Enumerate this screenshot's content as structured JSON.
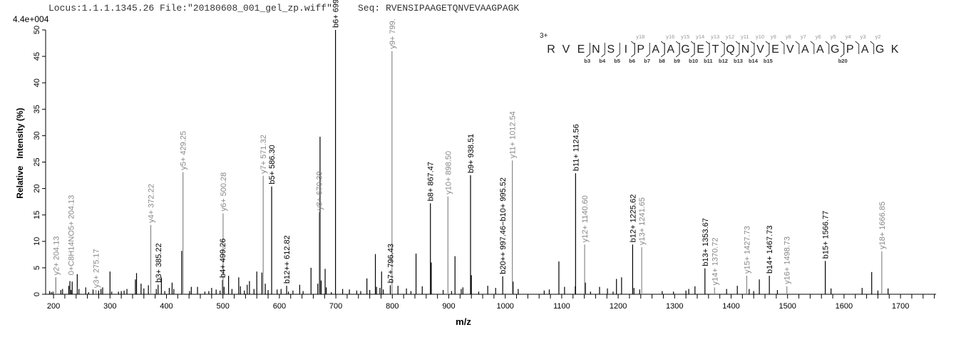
{
  "header": {
    "locus": "Locus:1.1.1.1345.26 File:\"20180608_001_gel_zp.wiff\"",
    "seq": "Seq: RVENSIPAAGETQNVEVAAGPAGK",
    "scale": "4.4e+004"
  },
  "ladder": {
    "charge": "3+",
    "sequence": [
      "R",
      "V",
      "E",
      "N",
      "S",
      "I",
      "P",
      "A",
      "A",
      "G",
      "E",
      "T",
      "Q",
      "N",
      "V",
      "E",
      "V",
      "A",
      "A",
      "G",
      "P",
      "A",
      "G",
      "K"
    ],
    "y_ions": [
      {
        "after": 6,
        "label": "y18"
      },
      {
        "after": 8,
        "label": "y16"
      },
      {
        "after": 9,
        "label": "y15"
      },
      {
        "after": 10,
        "label": "y14"
      },
      {
        "after": 11,
        "label": "y13"
      },
      {
        "after": 12,
        "label": "y12"
      },
      {
        "after": 13,
        "label": "y11"
      },
      {
        "after": 14,
        "label": "y10"
      },
      {
        "after": 15,
        "label": "y9"
      },
      {
        "after": 16,
        "label": "y8"
      },
      {
        "after": 17,
        "label": "y7"
      },
      {
        "after": 18,
        "label": "y6"
      },
      {
        "after": 19,
        "label": "y5"
      },
      {
        "after": 20,
        "label": "y4"
      },
      {
        "after": 21,
        "label": "y3"
      },
      {
        "after": 22,
        "label": "y2"
      }
    ],
    "b_ions": [
      {
        "after": 3,
        "label": "b3"
      },
      {
        "after": 4,
        "label": "b4"
      },
      {
        "after": 5,
        "label": "b5"
      },
      {
        "after": 6,
        "label": "b6"
      },
      {
        "after": 7,
        "label": "b7"
      },
      {
        "after": 8,
        "label": "b8"
      },
      {
        "after": 9,
        "label": "b9"
      },
      {
        "after": 10,
        "label": "b10"
      },
      {
        "after": 11,
        "label": "b11"
      },
      {
        "after": 12,
        "label": "b12"
      },
      {
        "after": 13,
        "label": "b13"
      },
      {
        "after": 14,
        "label": "b14"
      },
      {
        "after": 15,
        "label": "b15"
      },
      {
        "after": 20,
        "label": "b20"
      }
    ]
  },
  "colors": {
    "b_ion": "#000000",
    "y_ion": "#888888",
    "unlabeled": "#000000"
  },
  "chart_data": {
    "type": "bar",
    "xlabel": "m/z",
    "ylabel": "Relative   Intensity (%)",
    "xlim": [
      186,
      1763
    ],
    "ylim": [
      0,
      50
    ],
    "xticks": [
      200,
      300,
      400,
      500,
      600,
      700,
      800,
      900,
      1000,
      1100,
      1200,
      1300,
      1400,
      1500,
      1600,
      1700
    ],
    "yticks": [
      0,
      5,
      10,
      15,
      20,
      25,
      30,
      35,
      40,
      45,
      50
    ],
    "grid": false,
    "labeled_peaks": [
      {
        "mz": 204.13,
        "intensity": 3.2,
        "label": "y2+ 204.13",
        "type": "y"
      },
      {
        "mz": 204.13,
        "intensity": 3.2,
        "label": "0+C8H14NO5+ 204.13",
        "type": "y",
        "label_offset": true
      },
      {
        "mz": 275.17,
        "intensity": 0.8,
        "label": "y3+ 275.17",
        "type": "y"
      },
      {
        "mz": 372.22,
        "intensity": 13.1,
        "label": "y4+ 372.22",
        "type": "y"
      },
      {
        "mz": 385.22,
        "intensity": 1.8,
        "label": "b3+ 385.22",
        "type": "b"
      },
      {
        "mz": 429.25,
        "intensity": 23.1,
        "label": "y5+ 429.25",
        "type": "y"
      },
      {
        "mz": 499.26,
        "intensity": 2.7,
        "label": "b4+ 499.26",
        "type": "b"
      },
      {
        "mz": 500.28,
        "intensity": 15.3,
        "label": "y6+ 500.28",
        "type": "y"
      },
      {
        "mz": 571.32,
        "intensity": 22.4,
        "label": "y7+ 571.32",
        "type": "y"
      },
      {
        "mz": 586.3,
        "intensity": 20.4,
        "label": "b5+ 586.30",
        "type": "b"
      },
      {
        "mz": 612.82,
        "intensity": 1.6,
        "label": "b12++ 612.82",
        "type": "b"
      },
      {
        "mz": 670.39,
        "intensity": 15.5,
        "label": "y8+ 670.39",
        "type": "y"
      },
      {
        "mz": 699.38,
        "intensity": 50,
        "label": "b6+ 699.38",
        "type": "b"
      },
      {
        "mz": 796.43,
        "intensity": 1.7,
        "label": "b7+ 796.43",
        "type": "b"
      },
      {
        "mz": 799.4,
        "intensity": 46,
        "label": "y9+ 799.",
        "type": "y"
      },
      {
        "mz": 867.47,
        "intensity": 17.2,
        "label": "b8+ 867.47",
        "type": "b"
      },
      {
        "mz": 898.5,
        "intensity": 18.5,
        "label": "y10+ 898.50",
        "type": "y"
      },
      {
        "mz": 938.51,
        "intensity": 22.5,
        "label": "b9+ 938.51",
        "type": "b"
      },
      {
        "mz": 995.52,
        "intensity": 3.4,
        "label": "b20++ 997.46−b10+ 995.52",
        "type": "b"
      },
      {
        "mz": 1012.54,
        "intensity": 25.3,
        "label": "y11+ 1012.54",
        "type": "y"
      },
      {
        "mz": 1124.56,
        "intensity": 22.9,
        "label": "b11+ 1124.56",
        "type": "b"
      },
      {
        "mz": 1140.6,
        "intensity": 9.4,
        "label": "y12+ 1140.60",
        "type": "y"
      },
      {
        "mz": 1225.62,
        "intensity": 9.4,
        "label": "b12+ 1225.62",
        "type": "b"
      },
      {
        "mz": 1241.65,
        "intensity": 8.9,
        "label": "y13+ 1241.65",
        "type": "y"
      },
      {
        "mz": 1353.67,
        "intensity": 4.9,
        "label": "b13+ 1353.67",
        "type": "b"
      },
      {
        "mz": 1370.72,
        "intensity": 1.3,
        "label": "y14+ 1370.72",
        "type": "y"
      },
      {
        "mz": 1427.73,
        "intensity": 3.5,
        "label": "y15+ 1427.73",
        "type": "y"
      },
      {
        "mz": 1467.73,
        "intensity": 3.5,
        "label": "b14+ 1467.73",
        "type": "b"
      },
      {
        "mz": 1498.73,
        "intensity": 1.5,
        "label": "y16+ 1498.73",
        "type": "y"
      },
      {
        "mz": 1566.77,
        "intensity": 6.3,
        "label": "b15+ 1566.77",
        "type": "b"
      },
      {
        "mz": 1666.85,
        "intensity": 8.1,
        "label": "y18+ 1666.85",
        "type": "y"
      }
    ],
    "peaks": [
      [
        193,
        0.6
      ],
      [
        196,
        0.4
      ],
      [
        199,
        0.5
      ],
      [
        213,
        0.8
      ],
      [
        216,
        1.0
      ],
      [
        227,
        1.6
      ],
      [
        229,
        2.5
      ],
      [
        231,
        0.8
      ],
      [
        233,
        2.4
      ],
      [
        242,
        3.8
      ],
      [
        245,
        1.0
      ],
      [
        257,
        1.3
      ],
      [
        262,
        0.4
      ],
      [
        270,
        0.9
      ],
      [
        280,
        0.7
      ],
      [
        284,
        1.0
      ],
      [
        287,
        1.3
      ],
      [
        300,
        4.3
      ],
      [
        303,
        0.5
      ],
      [
        315,
        0.5
      ],
      [
        320,
        0.6
      ],
      [
        325,
        0.7
      ],
      [
        330,
        1.0
      ],
      [
        345,
        2.8
      ],
      [
        347,
        4.0
      ],
      [
        355,
        2.0
      ],
      [
        360,
        1.1
      ],
      [
        368,
        1.7
      ],
      [
        382,
        1.0
      ],
      [
        391,
        3.2
      ],
      [
        397,
        0.6
      ],
      [
        405,
        1.2
      ],
      [
        410,
        2.2
      ],
      [
        413,
        1.0
      ],
      [
        427,
        8.2
      ],
      [
        441,
        0.6
      ],
      [
        444,
        1.4
      ],
      [
        455,
        1.4
      ],
      [
        468,
        0.5
      ],
      [
        475,
        0.6
      ],
      [
        480,
        1.2
      ],
      [
        488,
        0.9
      ],
      [
        495,
        0.7
      ],
      [
        502,
        1.4
      ],
      [
        510,
        3.5
      ],
      [
        516,
        1.0
      ],
      [
        528,
        3.2
      ],
      [
        531,
        1.5
      ],
      [
        538,
        0.7
      ],
      [
        543,
        1.8
      ],
      [
        547,
        2.5
      ],
      [
        555,
        1.0
      ],
      [
        560,
        4.3
      ],
      [
        569,
        4.1
      ],
      [
        575,
        2.0
      ],
      [
        580,
        0.8
      ],
      [
        596,
        0.9
      ],
      [
        603,
        1.0
      ],
      [
        616,
        0.5
      ],
      [
        624,
        0.7
      ],
      [
        636,
        1.8
      ],
      [
        642,
        0.6
      ],
      [
        656,
        5.0
      ],
      [
        668,
        2.0
      ],
      [
        672,
        29.8
      ],
      [
        674,
        2.6
      ],
      [
        681,
        4.8
      ],
      [
        683,
        1.3
      ],
      [
        692,
        0.4
      ],
      [
        712,
        1.0
      ],
      [
        724,
        0.9
      ],
      [
        737,
        0.7
      ],
      [
        744,
        0.6
      ],
      [
        755,
        3.0
      ],
      [
        760,
        0.8
      ],
      [
        770,
        7.6
      ],
      [
        772,
        1.4
      ],
      [
        778,
        1.2
      ],
      [
        781,
        4.3
      ],
      [
        784,
        0.9
      ],
      [
        810,
        1.6
      ],
      [
        825,
        1.1
      ],
      [
        833,
        0.6
      ],
      [
        842,
        7.7
      ],
      [
        853,
        1.5
      ],
      [
        869,
        6.0
      ],
      [
        890,
        0.8
      ],
      [
        905,
        0.6
      ],
      [
        911,
        7.2
      ],
      [
        922,
        1.0
      ],
      [
        925,
        1.3
      ],
      [
        940,
        3.6
      ],
      [
        953,
        0.5
      ],
      [
        969,
        1.6
      ],
      [
        983,
        1.2
      ],
      [
        1014,
        2.4
      ],
      [
        1023,
        1.0
      ],
      [
        1069,
        0.7
      ],
      [
        1078,
        0.9
      ],
      [
        1095,
        6.2
      ],
      [
        1105,
        1.4
      ],
      [
        1124,
        1.5
      ],
      [
        1142,
        2.2
      ],
      [
        1151,
        0.5
      ],
      [
        1167,
        1.4
      ],
      [
        1181,
        1.1
      ],
      [
        1191,
        0.5
      ],
      [
        1197,
        2.9
      ],
      [
        1206,
        3.2
      ],
      [
        1228,
        1.2
      ],
      [
        1238,
        0.9
      ],
      [
        1278,
        0.6
      ],
      [
        1298,
        0.5
      ],
      [
        1320,
        0.7
      ],
      [
        1325,
        1.0
      ],
      [
        1336,
        1.5
      ],
      [
        1392,
        1.0
      ],
      [
        1411,
        1.6
      ],
      [
        1432,
        1.0
      ],
      [
        1440,
        0.6
      ],
      [
        1450,
        2.8
      ],
      [
        1482,
        0.8
      ],
      [
        1577,
        1.1
      ],
      [
        1632,
        1.2
      ],
      [
        1649,
        4.2
      ],
      [
        1660,
        0.7
      ],
      [
        1678,
        1.1
      ]
    ]
  }
}
